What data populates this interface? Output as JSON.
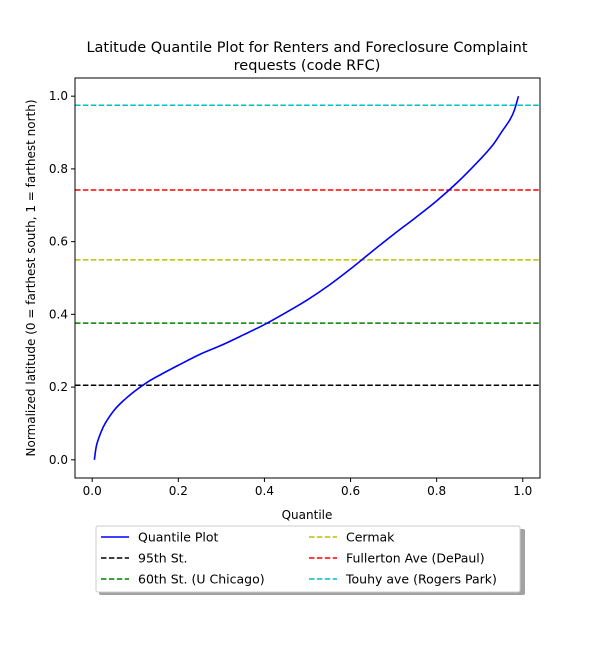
{
  "chart_data": {
    "type": "line",
    "title": "Latitude Quantile Plot for Renters and Foreclosure Complaint requests (code RFC)",
    "title_lines": [
      "Latitude Quantile Plot for Renters and Foreclosure Complaint",
      "requests (code RFC)"
    ],
    "xlabel": "Quantile",
    "ylabel": "Normalized latitude (0 = farthest south, 1 = farthest north)",
    "xlim": [
      -0.04,
      1.04
    ],
    "ylim": [
      -0.05,
      1.05
    ],
    "xticks": [
      0.0,
      0.2,
      0.4,
      0.6,
      0.8,
      1.0
    ],
    "yticks": [
      0.0,
      0.2,
      0.4,
      0.6,
      0.8,
      1.0
    ],
    "xtick_labels": [
      "0.0",
      "0.2",
      "0.4",
      "0.6",
      "0.8",
      "1.0"
    ],
    "ytick_labels": [
      "0.0",
      "0.2",
      "0.4",
      "0.6",
      "0.8",
      "1.0"
    ],
    "grid": false,
    "legend_placement": "below-center",
    "series": [
      {
        "name": "Quantile Plot",
        "color": "#0000ff",
        "style": "solid",
        "x": [
          0.005,
          0.01,
          0.02,
          0.03,
          0.05,
          0.07,
          0.1,
          0.13,
          0.16,
          0.2,
          0.25,
          0.3,
          0.35,
          0.4,
          0.45,
          0.5,
          0.55,
          0.6,
          0.65,
          0.7,
          0.75,
          0.8,
          0.85,
          0.9,
          0.93,
          0.95,
          0.97,
          0.98,
          0.99
        ],
        "y": [
          0.0,
          0.04,
          0.075,
          0.1,
          0.135,
          0.16,
          0.19,
          0.215,
          0.235,
          0.26,
          0.29,
          0.315,
          0.343,
          0.372,
          0.405,
          0.44,
          0.48,
          0.525,
          0.573,
          0.62,
          0.665,
          0.712,
          0.765,
          0.825,
          0.865,
          0.9,
          0.935,
          0.96,
          1.0
        ]
      },
      {
        "name": "95th St.",
        "color": "#000000",
        "style": "dashed",
        "y_constant": 0.205
      },
      {
        "name": "60th St. (U Chicago)",
        "color": "#008000",
        "style": "dashed",
        "y_constant": 0.376
      },
      {
        "name": "Cermak",
        "color": "#bfbf00",
        "style": "dashed",
        "y_constant": 0.55
      },
      {
        "name": "Fullerton Ave (DePaul)",
        "color": "#ff0000",
        "style": "dashed",
        "y_constant": 0.742
      },
      {
        "name": "Touhy ave (Rogers Park)",
        "color": "#00bfbf",
        "style": "dashed",
        "y_constant": 0.975
      }
    ]
  }
}
